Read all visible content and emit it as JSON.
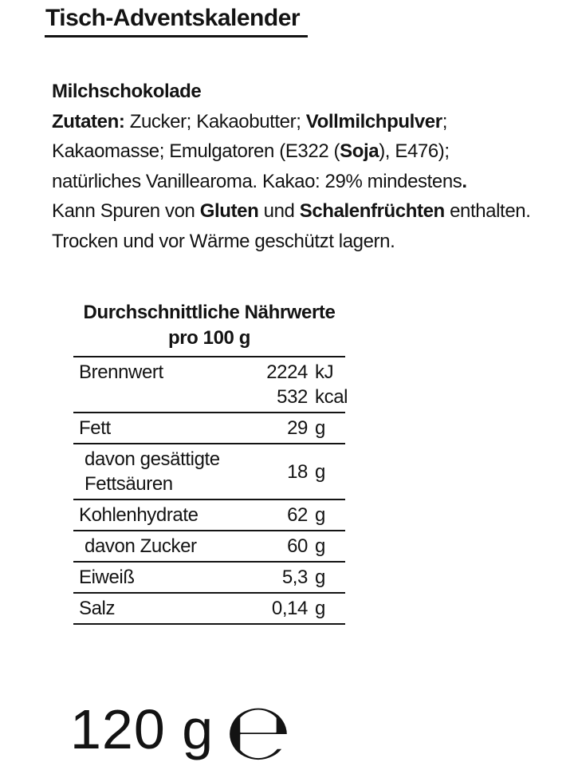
{
  "colors": {
    "text": "#131313",
    "background": "#ffffff",
    "rule": "#131313"
  },
  "page": {
    "title": "Tisch-Adventskalender"
  },
  "body": {
    "line1": {
      "t0": "Milchschokolade"
    },
    "line2": {
      "t0": "Zutaten:",
      "t1": " Zucker; Kakaobutter; ",
      "t2": "Vollmilchpulver",
      "t3": ";"
    },
    "line3": {
      "t0": "Kakaomasse; Emulgatoren (E322 (",
      "t1": "Soja",
      "t2": "), E476);"
    },
    "line4": {
      "t0": "natürliches Vanillearoma. Kakao: 29% mindestens",
      "t1": "."
    },
    "line5": {
      "t0": "Kann Spuren von ",
      "t1": "Gluten",
      "t2": " und ",
      "t3": "Schalenfrüchten",
      "t4": " enthalten."
    },
    "line6": {
      "t0": "Trocken und vor Wärme geschützt lagern."
    }
  },
  "nutrition": {
    "title": "Durchschnittliche Nährwerte",
    "subtitle": "pro 100 g",
    "rows": [
      {
        "label": "Brennwert",
        "lines": [
          {
            "value": "2224",
            "unit": "kJ"
          },
          {
            "value": "532",
            "unit": "kcal"
          }
        ]
      },
      {
        "label": "Fett",
        "lines": [
          {
            "value": "29",
            "unit": "g"
          }
        ]
      },
      {
        "label": "davon gesättigte Fettsäuren",
        "lines": [
          {
            "value": "18",
            "unit": "g"
          }
        ]
      },
      {
        "label": "Kohlenhydrate",
        "lines": [
          {
            "value": "62",
            "unit": "g"
          }
        ]
      },
      {
        "label": "davon Zucker",
        "lines": [
          {
            "value": "60",
            "unit": "g"
          }
        ]
      },
      {
        "label": "Eiweiß",
        "lines": [
          {
            "value": "5,3",
            "unit": "g"
          }
        ]
      },
      {
        "label": "Salz",
        "lines": [
          {
            "value": "0,14",
            "unit": "g"
          }
        ]
      }
    ]
  },
  "net_weight": {
    "amount": "120 g",
    "estimated_sign": "℮"
  }
}
